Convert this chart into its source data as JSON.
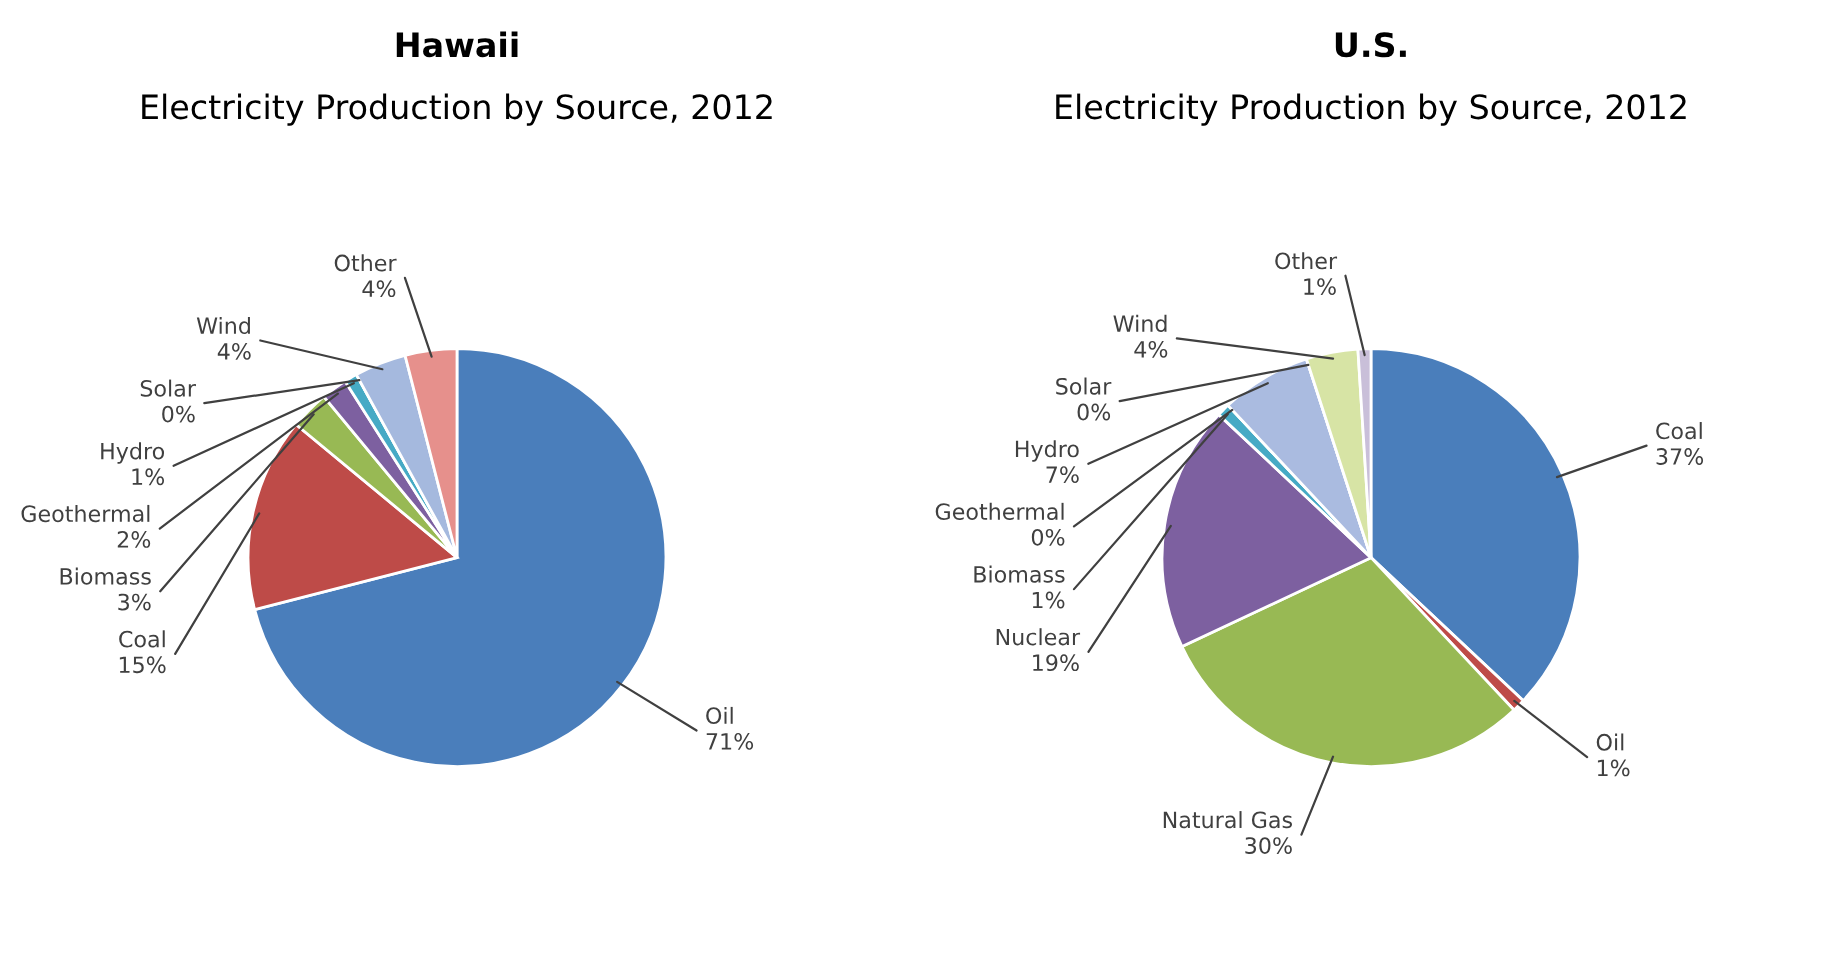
{
  "chart_data": [
    {
      "type": "pie",
      "value_labels": [
        "71%",
        "15%",
        "3%",
        "2%",
        "1%",
        "0%",
        "4%",
        "4%"
      ],
      "title": "Hawaii",
      "subtitle": "Electricity Production by Source, 2012",
      "categories": [
        "Oil",
        "Coal",
        "Biomass",
        "Geothermal",
        "Hydro",
        "Solar",
        "Wind",
        "Other"
      ],
      "values": [
        71,
        15,
        3,
        2,
        1,
        0,
        4,
        4
      ],
      "colors": [
        "#4a7ebb",
        "#be4b48",
        "#98b954",
        "#7d60a0",
        "#46aac5",
        "#f79646",
        "#a5b9de",
        "#e6908c"
      ]
    },
    {
      "type": "pie",
      "value_labels": [
        "37%",
        "1%",
        "30%",
        "19%",
        "1%",
        "0%",
        "7%",
        "0%",
        "4%",
        "1%"
      ],
      "title": "U.S.",
      "subtitle": "Electricity Production by Source, 2012",
      "categories": [
        "Coal",
        "Oil",
        "Natural Gas",
        "Nuclear",
        "Biomass",
        "Geothermal",
        "Hydro",
        "Solar",
        "Wind",
        "Other"
      ],
      "values": [
        37,
        1,
        30,
        19,
        1,
        0,
        7,
        0,
        4,
        1
      ],
      "colors": [
        "#4a7ebb",
        "#be4b48",
        "#98b954",
        "#7d60a0",
        "#46aac5",
        "#f79646",
        "#aabbe0",
        "#e6908c",
        "#d7e4a5",
        "#c9bfd9"
      ]
    }
  ]
}
